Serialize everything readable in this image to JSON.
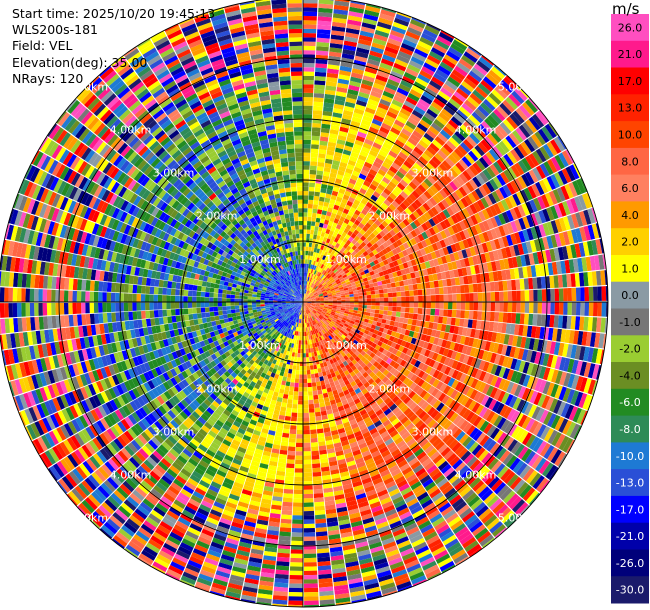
{
  "info": {
    "start_time": "Start time: 2025/10/20 19:45:13",
    "instrument": "WLS200s-181",
    "field": "Field: VEL",
    "elevation": "Elevation(deg): 35.00",
    "nrays": "NRays: 120"
  },
  "colorbar": {
    "unit": "m/s",
    "ticks": [
      "26.0",
      "21.0",
      "17.0",
      "13.0",
      "10.0",
      "8.0",
      "6.0",
      "4.0",
      "2.0",
      "1.0",
      "0.0",
      "-1.0",
      "-2.0",
      "-4.0",
      "-6.0",
      "-8.0",
      "-10.0",
      "-13.0",
      "-17.0",
      "-21.0",
      "-26.0",
      "-30.0"
    ],
    "colors": [
      "#ff4fc0",
      "#ff1a8c",
      "#ff0000",
      "#ff2200",
      "#ff4400",
      "#ff6644",
      "#ff8060",
      "#ff9a00",
      "#ffd000",
      "#ffff00",
      "#8a9aa4",
      "#777777",
      "#9acd32",
      "#6b8e23",
      "#228b22",
      "#2e8b57",
      "#1e7ad4",
      "#2a4fd6",
      "#0000ff",
      "#0000aa",
      "#00007a",
      "#1a1a6b"
    ]
  },
  "chart_data": {
    "type": "heatmap",
    "projection": "PPI polar scan",
    "field": "VEL",
    "units": "m/s",
    "n_rays": 120,
    "elevation_deg": 35.0,
    "range_rings_km": [
      "1.00km",
      "2.00km",
      "3.00km",
      "4.00km",
      "5.00km"
    ],
    "max_range_km": 5.0,
    "value_range": [
      -30.0,
      26.0
    ],
    "pattern": {
      "inner_signal_km": 3.2,
      "positive_sector_deg": "east and southeast (0-90 deg clockwise from east ~ -90 to 90)",
      "negative_sector_deg": "west and northwest",
      "outer_region": "noise"
    }
  }
}
